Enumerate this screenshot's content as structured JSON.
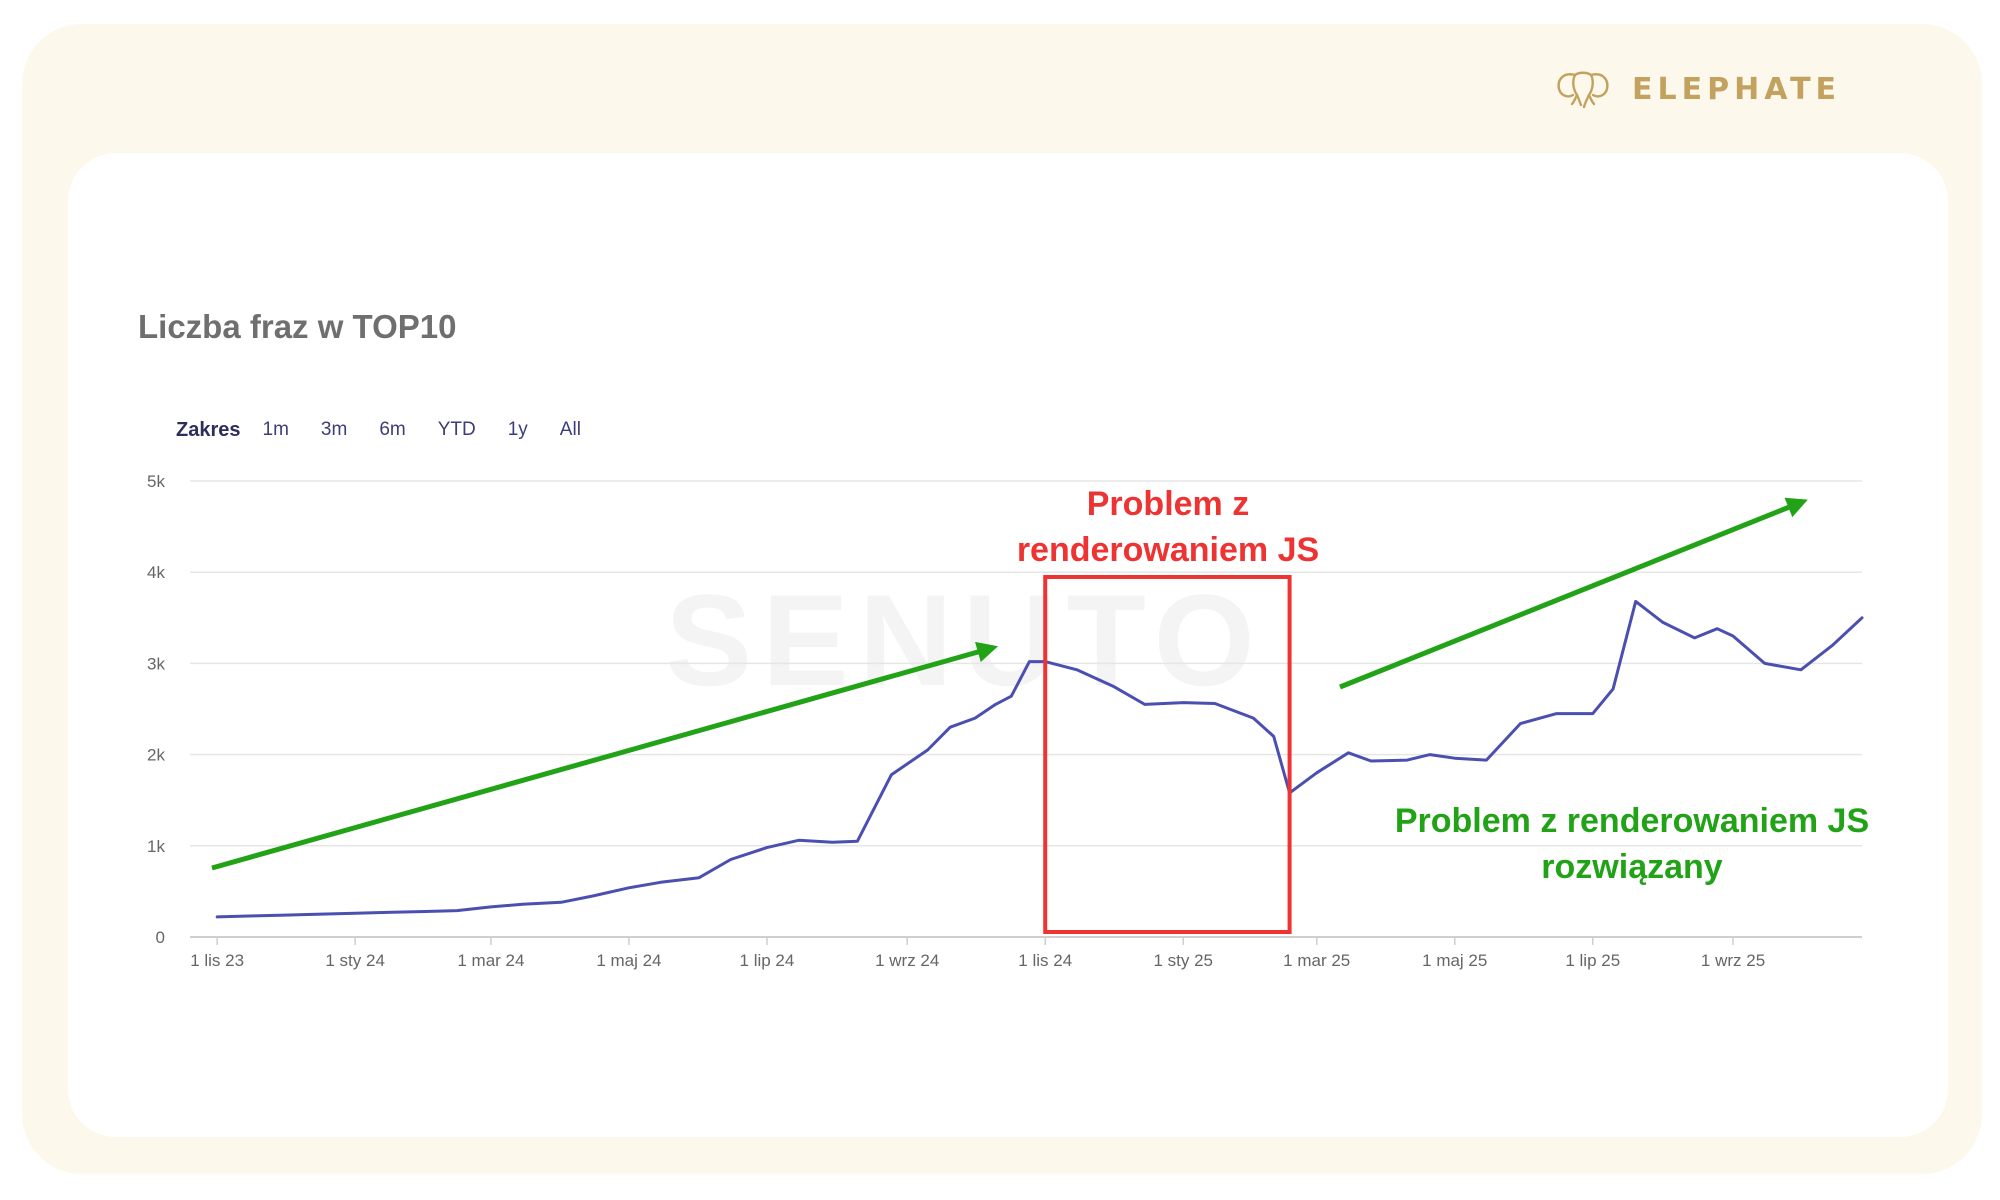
{
  "brand": {
    "name": "ELEPHATE",
    "logo_icon": "elephant-icon",
    "color": "#c2a25e"
  },
  "chart_title": "Liczba fraz w TOP10",
  "range_selector": {
    "label": "Zakres",
    "options": [
      "1m",
      "3m",
      "6m",
      "YTD",
      "1y",
      "All"
    ]
  },
  "watermark": "SENUTO",
  "annotations": {
    "problem": [
      "Problem z",
      "renderowaniem JS"
    ],
    "solved": [
      "Problem z renderowaniem JS",
      "rozwiązany"
    ]
  },
  "colors": {
    "line": "#4a4fb0",
    "problem": "#ee3333",
    "solved": "#22a317"
  },
  "chart_data": {
    "type": "line",
    "title": "Liczba fraz w TOP10",
    "xlabel": "",
    "ylabel": "",
    "ylim": [
      0,
      5000
    ],
    "y_ticks": [
      0,
      1000,
      2000,
      3000,
      4000,
      5000
    ],
    "y_tick_labels": [
      "0",
      "1k",
      "2k",
      "3k",
      "4k",
      "5k"
    ],
    "x_tick_labels": [
      "1 lis 23",
      "1 sty 24",
      "1 mar 24",
      "1 maj 24",
      "1 lip 24",
      "1 wrz 24",
      "1 lis 24",
      "1 sty 25",
      "1 mar 25",
      "1 maj 25",
      "1 lip 25",
      "1 wrz 25"
    ],
    "x_tick_dates": [
      "2023-11-01",
      "2024-01-01",
      "2024-03-01",
      "2024-05-01",
      "2024-07-01",
      "2024-09-01",
      "2024-11-01",
      "2025-01-01",
      "2025-03-01",
      "2025-05-01",
      "2025-07-01",
      "2025-09-01"
    ],
    "grid": true,
    "legend": "none",
    "problem_period": [
      "2024-11-01",
      "2025-02-17"
    ],
    "series": [
      {
        "x": [
          "2023-11-01",
          "2023-11-15",
          "2023-12-01",
          "2023-12-15",
          "2024-01-01",
          "2024-01-15",
          "2024-02-01",
          "2024-02-15",
          "2024-03-01",
          "2024-03-15",
          "2024-04-01",
          "2024-04-15",
          "2024-05-01",
          "2024-05-15",
          "2024-06-01",
          "2024-06-15",
          "2024-07-01",
          "2024-07-15",
          "2024-07-30",
          "2024-08-10",
          "2024-08-25",
          "2024-09-10",
          "2024-09-20",
          "2024-10-01",
          "2024-10-10",
          "2024-10-17",
          "2024-10-25",
          "2024-11-01",
          "2024-11-15",
          "2024-12-01",
          "2024-12-15",
          "2025-01-01",
          "2025-01-15",
          "2025-02-01",
          "2025-02-10",
          "2025-02-17",
          "2025-03-01",
          "2025-03-15",
          "2025-03-25",
          "2025-04-10",
          "2025-04-20",
          "2025-05-01",
          "2025-05-15",
          "2025-05-30",
          "2025-06-15",
          "2025-07-01",
          "2025-07-10",
          "2025-07-20",
          "2025-08-01",
          "2025-08-15",
          "2025-08-25",
          "2025-09-01",
          "2025-09-15",
          "2025-10-01",
          "2025-10-15",
          "2025-10-28"
        ],
        "y": [
          220,
          230,
          240,
          250,
          260,
          270,
          280,
          290,
          330,
          360,
          380,
          450,
          540,
          600,
          650,
          850,
          980,
          1060,
          1040,
          1050,
          1780,
          2050,
          2300,
          2400,
          2550,
          2640,
          3020,
          3020,
          2930,
          2750,
          2550,
          2570,
          2560,
          2400,
          2200,
          1580,
          1800,
          2020,
          1930,
          1940,
          2000,
          1960,
          1940,
          2340,
          2450,
          2450,
          2720,
          3680,
          3450,
          3280,
          3380,
          3300,
          3000,
          2930,
          3200,
          3500
        ]
      }
    ]
  }
}
